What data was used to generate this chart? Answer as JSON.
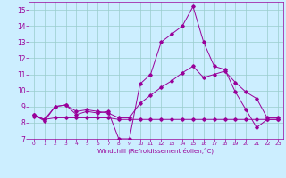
{
  "title": "",
  "xlabel": "Windchill (Refroidissement éolien,°C)",
  "bg_color": "#cceeff",
  "grid_color": "#99cccc",
  "line_color": "#990099",
  "x": [
    0,
    1,
    2,
    3,
    4,
    5,
    6,
    7,
    8,
    9,
    10,
    11,
    12,
    13,
    14,
    15,
    16,
    17,
    18,
    19,
    20,
    21,
    22,
    23
  ],
  "line1": [
    8.5,
    8.1,
    9.0,
    9.1,
    8.5,
    8.7,
    8.6,
    8.7,
    7.0,
    7.0,
    10.4,
    11.0,
    13.0,
    13.5,
    14.0,
    15.2,
    13.0,
    11.5,
    11.3,
    9.9,
    8.8,
    7.7,
    8.2,
    8.2
  ],
  "line2": [
    8.5,
    8.2,
    9.0,
    9.1,
    8.7,
    8.8,
    8.7,
    8.6,
    8.3,
    8.3,
    9.2,
    9.7,
    10.2,
    10.6,
    11.1,
    11.5,
    10.8,
    11.0,
    11.2,
    10.5,
    9.9,
    9.5,
    8.3,
    8.3
  ],
  "line3": [
    8.4,
    8.2,
    8.3,
    8.3,
    8.3,
    8.3,
    8.3,
    8.3,
    8.2,
    8.2,
    8.2,
    8.2,
    8.2,
    8.2,
    8.2,
    8.2,
    8.2,
    8.2,
    8.2,
    8.2,
    8.2,
    8.2,
    8.2,
    8.2
  ],
  "ylim": [
    7,
    15.5
  ],
  "xlim": [
    -0.5,
    23.5
  ],
  "yticks": [
    7,
    8,
    9,
    10,
    11,
    12,
    13,
    14,
    15
  ],
  "xticks": [
    0,
    1,
    2,
    3,
    4,
    5,
    6,
    7,
    8,
    9,
    10,
    11,
    12,
    13,
    14,
    15,
    16,
    17,
    18,
    19,
    20,
    21,
    22,
    23
  ],
  "xticklabels": [
    "0",
    "1",
    "2",
    "3",
    "4",
    "5",
    "6",
    "7",
    "8",
    "9",
    "10",
    "11",
    "12",
    "13",
    "14",
    "15",
    "16",
    "17",
    "18",
    "19",
    "20",
    "21",
    "22",
    "23"
  ]
}
